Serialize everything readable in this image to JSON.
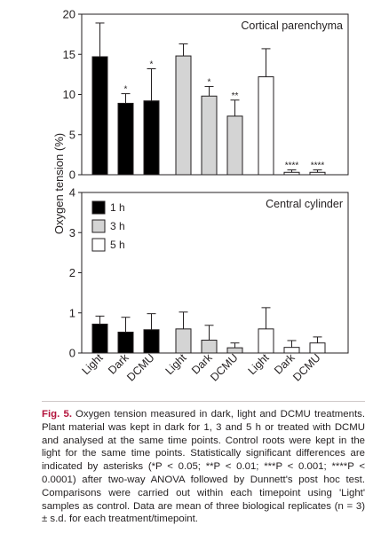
{
  "chart_data": {
    "type": "bar",
    "ylabel": "Oxygen tension (%)",
    "groups": [
      "1 h",
      "3 h",
      "5 h"
    ],
    "categories": [
      "Light",
      "Dark",
      "DCMU"
    ],
    "colors": {
      "1 h": "#000000",
      "3 h": "#d4d4d4",
      "5 h": "#ffffff"
    },
    "legend": {
      "placement": "top-left of lower panel",
      "entries": [
        "1 h",
        "3 h",
        "5 h"
      ]
    },
    "panels": [
      {
        "title": "Cortical parenchyma",
        "ylim": [
          0,
          20
        ],
        "yticks": [
          0,
          5,
          10,
          15,
          20
        ],
        "series": [
          {
            "name": "1 h",
            "values": [
              14.7,
              8.9,
              9.2
            ],
            "sd": [
              4.2,
              1.2,
              4.0
            ],
            "significance": [
              "",
              "*",
              "*"
            ]
          },
          {
            "name": "3 h",
            "values": [
              14.8,
              9.8,
              7.3
            ],
            "sd": [
              1.5,
              1.2,
              2.0
            ],
            "significance": [
              "",
              "*",
              "**"
            ]
          },
          {
            "name": "5 h",
            "values": [
              12.2,
              0.3,
              0.3
            ],
            "sd": [
              3.5,
              0.3,
              0.3
            ],
            "significance": [
              "",
              "****",
              "****"
            ]
          }
        ]
      },
      {
        "title": "Central cylinder",
        "ylim": [
          0,
          4
        ],
        "yticks": [
          0,
          1,
          2,
          3,
          4
        ],
        "series": [
          {
            "name": "1 h",
            "values": [
              0.72,
              0.52,
              0.58
            ],
            "sd": [
              0.2,
              0.37,
              0.4
            ],
            "significance": [
              "",
              "",
              ""
            ]
          },
          {
            "name": "3 h",
            "values": [
              0.6,
              0.32,
              0.13
            ],
            "sd": [
              0.42,
              0.37,
              0.12
            ],
            "significance": [
              "",
              "",
              ""
            ]
          },
          {
            "name": "5 h",
            "values": [
              0.6,
              0.14,
              0.25
            ],
            "sd": [
              0.53,
              0.17,
              0.15
            ],
            "significance": [
              "",
              "",
              ""
            ]
          }
        ]
      }
    ]
  },
  "caption": {
    "label": "Fig. 5.",
    "text": "Oxygen tension measured in dark, light and DCMU treatments. Plant material was kept in dark for 1, 3 and 5 h or treated with DCMU and analysed at the same time points. Control roots were kept in the light for the same time points. Statistically significant differences are indicated by asterisks (*P < 0.05; **P < 0.01; ***P < 0.001; ****P < 0.0001) after two-way ANOVA followed by Dunnett's post hoc test. Comparisons were carried out within each timepoint using 'Light' samples as control. Data are mean of three biological replicates (n = 3) ± s.d. for each treatment/timepoint."
  }
}
